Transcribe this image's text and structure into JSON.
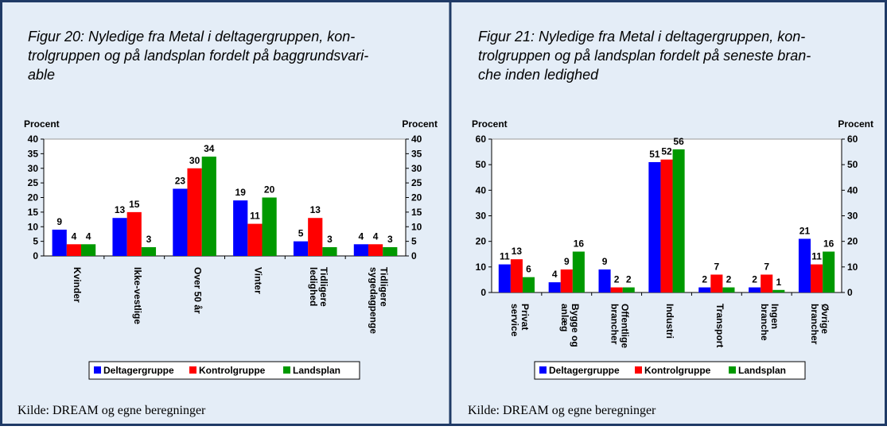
{
  "chart_data": [
    {
      "type": "bar",
      "title": "Figur 20: Nyledige fra Metal i deltagergruppen, kon-\ntrolgruppen og på landsplan fordelt på baggrundsvari-\nable",
      "y_label": "Procent",
      "y2_label": "Procent",
      "categories": [
        "Kvinder",
        "Ikke-vestlige",
        "Over 50 år",
        "Vinter",
        "Tidligere\nledighed",
        "Tidligere\nsygedagpenge"
      ],
      "series": [
        {
          "name": "Deltagergruppe",
          "color": "#0000ff",
          "values": [
            9,
            13,
            23,
            19,
            5,
            4
          ]
        },
        {
          "name": "Kontrolgruppe",
          "color": "#ff0000",
          "values": [
            4,
            15,
            30,
            11,
            13,
            4
          ]
        },
        {
          "name": "Landsplan",
          "color": "#009900",
          "values": [
            4,
            3,
            34,
            20,
            3,
            3
          ]
        }
      ],
      "ylim": [
        0,
        40
      ],
      "yticks": [
        0,
        5,
        10,
        15,
        20,
        25,
        30,
        35,
        40
      ],
      "y2lim": [
        0,
        40
      ],
      "y2ticks": [
        0,
        5,
        10,
        15,
        20,
        25,
        30,
        35,
        40
      ],
      "legend": "bottom",
      "source": "Kilde: DREAM og egne beregninger"
    },
    {
      "type": "bar",
      "title": "Figur 21: Nyledige fra Metal i deltagergruppen, kon-\ntrolgruppen og på landsplan fordelt på seneste bran-\nche inden ledighed",
      "y_label": "Procent",
      "y2_label": "Procent",
      "categories": [
        "Privat\nservice",
        "Bygge og\nanlæg",
        "Offentlige\nbrancher",
        "Industri",
        "Transport",
        "Ingen\nbranche",
        "Øvrige\nbrancher"
      ],
      "series": [
        {
          "name": "Deltagergruppe",
          "color": "#0000ff",
          "values": [
            11,
            4,
            9,
            51,
            2,
            2,
            21
          ]
        },
        {
          "name": "Kontrolgruppe",
          "color": "#ff0000",
          "values": [
            13,
            9,
            2,
            52,
            7,
            7,
            11
          ]
        },
        {
          "name": "Landsplan",
          "color": "#009900",
          "values": [
            6,
            16,
            2,
            56,
            2,
            1,
            16
          ]
        }
      ],
      "ylim": [
        0,
        60
      ],
      "yticks": [
        0,
        10,
        20,
        30,
        40,
        50,
        60
      ],
      "y2lim": [
        0,
        60
      ],
      "y2ticks": [
        0,
        10,
        20,
        30,
        40,
        50,
        60
      ],
      "legend": "bottom",
      "source": "Kilde: DREAM og egne beregninger"
    }
  ]
}
